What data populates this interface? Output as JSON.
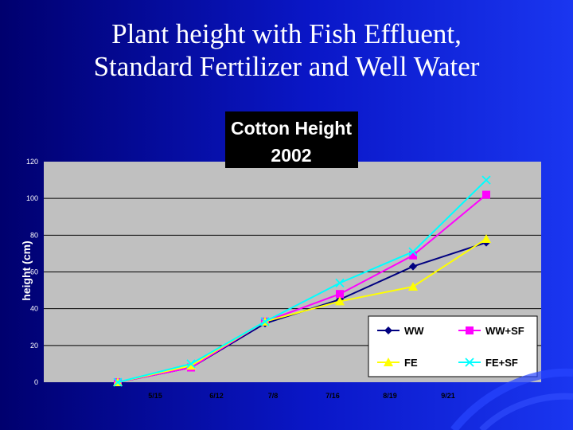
{
  "slide": {
    "title_line1": "Plant height with Fish Effluent,",
    "title_line2": "Standard Fertilizer and Well Water"
  },
  "colors": {
    "background_left": "#00006e",
    "background_right": "#1a36f0",
    "plot_area": "#c0c0c0",
    "chart_title_box": "#000000"
  },
  "chart_data": {
    "type": "line",
    "title_line1": "Cotton Height",
    "title_line2": "2002",
    "xlabel": "",
    "ylabel": "height (cm)",
    "categories": [
      "5/15",
      "6/12",
      "7/8",
      "7/16",
      "8/19",
      "9/21"
    ],
    "ylim": [
      0,
      120
    ],
    "yticks": [
      0,
      20,
      40,
      60,
      80,
      100,
      120
    ],
    "ytick_labels": [
      "0",
      "20",
      "40",
      "60",
      "80",
      "100",
      "120"
    ],
    "grid": true,
    "legend_position": "bottom-right",
    "series": [
      {
        "name": "WW",
        "color": "#000080",
        "marker": "diamond",
        "values": [
          0,
          8,
          32,
          45,
          63,
          76
        ]
      },
      {
        "name": "WW+SF",
        "color": "#ff00ff",
        "marker": "square",
        "values": [
          0,
          8,
          33,
          48,
          69,
          102
        ]
      },
      {
        "name": "FE",
        "color": "#ffff00",
        "marker": "triangle",
        "values": [
          0,
          9,
          33,
          44,
          52,
          78
        ]
      },
      {
        "name": "FE+SF",
        "color": "#00ffff",
        "marker": "x",
        "values": [
          0,
          10,
          33,
          54,
          71,
          110
        ]
      }
    ]
  }
}
